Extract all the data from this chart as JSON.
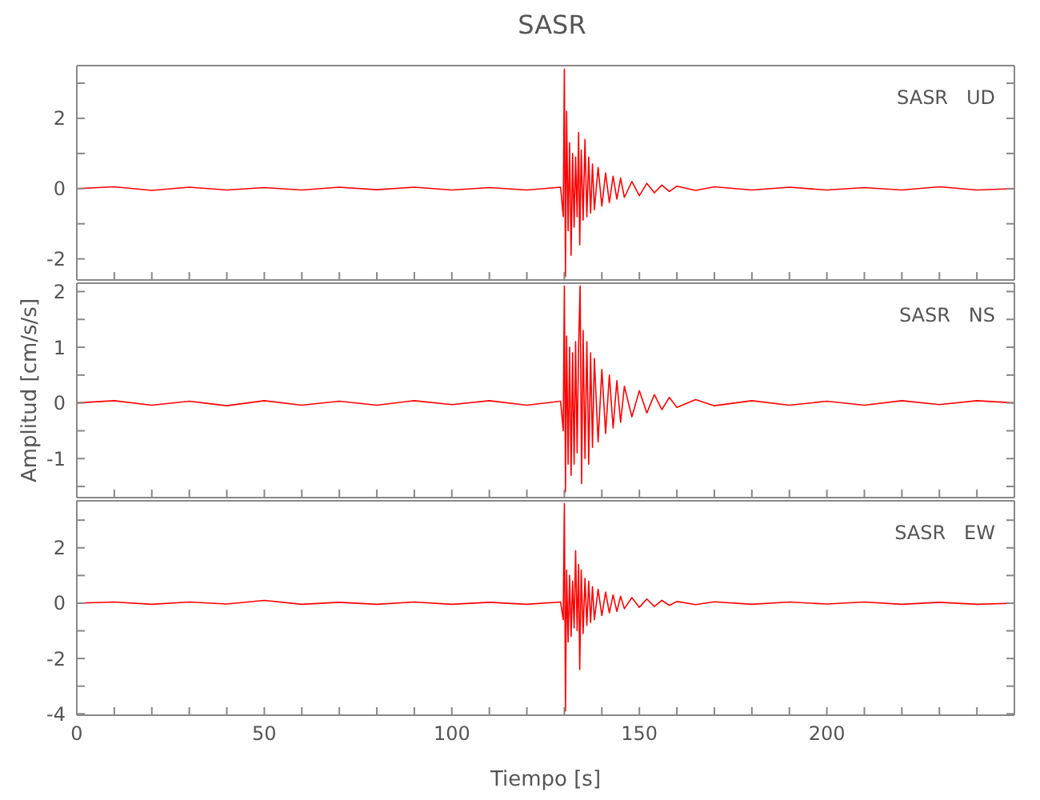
{
  "chart_data": [
    {
      "type": "line",
      "title": "SASR",
      "tick_labels": "y",
      "annotations": [
        "SASR   UD"
      ],
      "xlim": [
        0,
        250
      ],
      "xticks": [
        {
          "value": 10,
          "label": null
        },
        {
          "value": 20,
          "label": null
        },
        {
          "value": 30,
          "label": null
        },
        {
          "value": 40,
          "label": null
        },
        {
          "value": 50,
          "label": null
        },
        {
          "value": 60,
          "label": null
        },
        {
          "value": 70,
          "label": null
        },
        {
          "value": 80,
          "label": null
        },
        {
          "value": 90,
          "label": null
        },
        {
          "value": 100,
          "label": null
        },
        {
          "value": 110,
          "label": null
        },
        {
          "value": 120,
          "label": null
        },
        {
          "value": 130,
          "label": null
        },
        {
          "value": 140,
          "label": null
        },
        {
          "value": 150,
          "label": null
        },
        {
          "value": 160,
          "label": null
        },
        {
          "value": 170,
          "label": null
        },
        {
          "value": 180,
          "label": null
        },
        {
          "value": 190,
          "label": null
        },
        {
          "value": 200,
          "label": null
        },
        {
          "value": 210,
          "label": null
        },
        {
          "value": 220,
          "label": null
        },
        {
          "value": 230,
          "label": null
        },
        {
          "value": 240,
          "label": null
        }
      ],
      "ylim": [
        -2.6,
        3.5
      ],
      "yticks": [
        -2,
        {
          "value": -1,
          "label": null
        },
        0,
        {
          "value": 1,
          "label": null
        },
        2,
        {
          "value": 3,
          "label": null
        }
      ],
      "series": [
        {
          "color": "#ff0000",
          "x": [
            0,
            10,
            20,
            30,
            40,
            50,
            60,
            70,
            80,
            90,
            100,
            110,
            120,
            129,
            129.7,
            130,
            130.3,
            130.6,
            131,
            131.4,
            131.8,
            132.2,
            132.6,
            133,
            133.4,
            133.8,
            134.1,
            134.5,
            135,
            135.5,
            136,
            136.5,
            137,
            137.5,
            138,
            139,
            140,
            141,
            142,
            143,
            144,
            145,
            146,
            148,
            150,
            152,
            154,
            156,
            158,
            160,
            165,
            170,
            180,
            190,
            200,
            210,
            220,
            230,
            240,
            250
          ],
          "values": [
            0,
            0.05,
            -0.05,
            0.04,
            -0.04,
            0.03,
            -0.04,
            0.04,
            -0.03,
            0.04,
            -0.04,
            0.03,
            -0.04,
            0.04,
            -0.8,
            3.4,
            -2.5,
            2.2,
            -1.2,
            1.3,
            -1.9,
            1.0,
            -1.1,
            0.9,
            -0.8,
            1.6,
            -1.6,
            1.1,
            -0.9,
            1.4,
            -0.8,
            0.9,
            -0.7,
            0.7,
            -0.6,
            0.6,
            -0.5,
            0.45,
            -0.4,
            0.35,
            -0.3,
            0.3,
            -0.25,
            0.2,
            -0.2,
            0.15,
            -0.12,
            0.1,
            -0.08,
            0.07,
            -0.05,
            0.05,
            -0.04,
            0.04,
            -0.04,
            0.03,
            -0.04,
            0.05,
            -0.04,
            0
          ]
        }
      ]
    },
    {
      "type": "line",
      "ylabel": "Amplitud  [cm/s/s]",
      "tick_labels": "y",
      "annotations": [
        "SASR   NS"
      ],
      "xlim": [
        0,
        250
      ],
      "xticks": [
        {
          "value": 10,
          "label": null
        },
        {
          "value": 20,
          "label": null
        },
        {
          "value": 30,
          "label": null
        },
        {
          "value": 40,
          "label": null
        },
        {
          "value": 50,
          "label": null
        },
        {
          "value": 60,
          "label": null
        },
        {
          "value": 70,
          "label": null
        },
        {
          "value": 80,
          "label": null
        },
        {
          "value": 90,
          "label": null
        },
        {
          "value": 100,
          "label": null
        },
        {
          "value": 110,
          "label": null
        },
        {
          "value": 120,
          "label": null
        },
        {
          "value": 130,
          "label": null
        },
        {
          "value": 140,
          "label": null
        },
        {
          "value": 150,
          "label": null
        },
        {
          "value": 160,
          "label": null
        },
        {
          "value": 170,
          "label": null
        },
        {
          "value": 180,
          "label": null
        },
        {
          "value": 190,
          "label": null
        },
        {
          "value": 200,
          "label": null
        },
        {
          "value": 210,
          "label": null
        },
        {
          "value": 220,
          "label": null
        },
        {
          "value": 230,
          "label": null
        },
        {
          "value": 240,
          "label": null
        }
      ],
      "ylim": [
        -1.7,
        2.15
      ],
      "yticks": [
        {
          "value": -1.5,
          "label": null
        },
        -1,
        {
          "value": -0.5,
          "label": null
        },
        0,
        {
          "value": 0.5,
          "label": null
        },
        1,
        {
          "value": 1.5,
          "label": null
        },
        2
      ],
      "series": [
        {
          "color": "#ff0000",
          "x": [
            0,
            10,
            20,
            30,
            40,
            50,
            60,
            70,
            80,
            90,
            100,
            110,
            120,
            129,
            129.7,
            130,
            130.3,
            130.6,
            131,
            131.4,
            131.8,
            132.2,
            132.6,
            133,
            133.4,
            133.8,
            134.2,
            134.6,
            135,
            135.5,
            136,
            136.5,
            137,
            137.5,
            138,
            139,
            140,
            141,
            142,
            143,
            144,
            145,
            146,
            148,
            150,
            152,
            154,
            156,
            158,
            160,
            165,
            170,
            180,
            190,
            200,
            210,
            220,
            230,
            240,
            250
          ],
          "values": [
            0,
            0.04,
            -0.04,
            0.03,
            -0.05,
            0.04,
            -0.04,
            0.03,
            -0.04,
            0.04,
            -0.03,
            0.04,
            -0.04,
            0.03,
            -0.5,
            2.1,
            -1.6,
            1.2,
            -1.1,
            1.0,
            -1.3,
            0.9,
            -1.1,
            1.1,
            -0.9,
            1.0,
            2.1,
            -1.45,
            1.3,
            -1.0,
            1.1,
            -1.1,
            0.9,
            -0.8,
            0.8,
            -0.7,
            0.6,
            -0.55,
            0.5,
            -0.45,
            0.4,
            -0.35,
            0.3,
            -0.25,
            0.22,
            -0.18,
            0.15,
            -0.12,
            0.1,
            -0.08,
            0.06,
            -0.05,
            0.04,
            -0.04,
            0.03,
            -0.04,
            0.04,
            -0.03,
            0.04,
            0
          ]
        }
      ]
    },
    {
      "type": "line",
      "xlabel": "Tiempo  [s]",
      "annotations": [
        "SASR   EW"
      ],
      "xlim": [
        0,
        250
      ],
      "xticks": [
        0,
        {
          "value": 10,
          "label": null
        },
        {
          "value": 20,
          "label": null
        },
        {
          "value": 30,
          "label": null
        },
        {
          "value": 40,
          "label": null
        },
        {
          "value": 50,
          "label": "50"
        },
        {
          "value": 60,
          "label": null
        },
        {
          "value": 70,
          "label": null
        },
        {
          "value": 80,
          "label": null
        },
        {
          "value": 90,
          "label": null
        },
        {
          "value": 100,
          "label": "100"
        },
        {
          "value": 110,
          "label": null
        },
        {
          "value": 120,
          "label": null
        },
        {
          "value": 130,
          "label": null
        },
        {
          "value": 140,
          "label": null
        },
        {
          "value": 150,
          "label": "150"
        },
        {
          "value": 160,
          "label": null
        },
        {
          "value": 170,
          "label": null
        },
        {
          "value": 180,
          "label": null
        },
        {
          "value": 190,
          "label": null
        },
        {
          "value": 200,
          "label": "200"
        },
        {
          "value": 210,
          "label": null
        },
        {
          "value": 220,
          "label": null
        },
        {
          "value": 230,
          "label": null
        },
        {
          "value": 240,
          "label": null
        }
      ],
      "ylim": [
        -4.05,
        3.7
      ],
      "yticks": [
        -4,
        {
          "value": -3,
          "label": null
        },
        -2,
        {
          "value": -1,
          "label": null
        },
        0,
        {
          "value": 1,
          "label": null
        },
        2,
        {
          "value": 3,
          "label": null
        }
      ],
      "series": [
        {
          "color": "#ff0000",
          "x": [
            0,
            10,
            20,
            30,
            40,
            50,
            60,
            70,
            80,
            90,
            100,
            110,
            120,
            129,
            129.7,
            130,
            130.3,
            130.6,
            131,
            131.4,
            131.8,
            132.2,
            132.6,
            133,
            133.4,
            133.8,
            134.1,
            134.5,
            135,
            135.5,
            136,
            136.5,
            137,
            137.5,
            138,
            139,
            140,
            141,
            142,
            143,
            144,
            145,
            146,
            148,
            150,
            152,
            154,
            156,
            158,
            160,
            165,
            170,
            180,
            190,
            200,
            210,
            220,
            230,
            240,
            250
          ],
          "values": [
            0,
            0.04,
            -0.04,
            0.04,
            -0.03,
            0.1,
            -0.04,
            0.03,
            -0.04,
            0.04,
            -0.04,
            0.03,
            -0.04,
            0.04,
            -0.6,
            3.6,
            -3.9,
            1.2,
            -1.4,
            1.0,
            -1.2,
            0.8,
            -0.9,
            1.9,
            -1.0,
            1.4,
            -2.4,
            1.2,
            -1.1,
            0.9,
            -0.8,
            0.8,
            -0.7,
            0.6,
            -0.6,
            0.5,
            -0.45,
            0.4,
            -0.35,
            0.3,
            -0.3,
            0.25,
            -0.2,
            0.2,
            -0.15,
            0.15,
            -0.12,
            0.1,
            -0.08,
            0.06,
            -0.05,
            0.05,
            -0.04,
            0.04,
            -0.03,
            0.04,
            -0.04,
            0.03,
            -0.04,
            0
          ]
        }
      ]
    }
  ]
}
